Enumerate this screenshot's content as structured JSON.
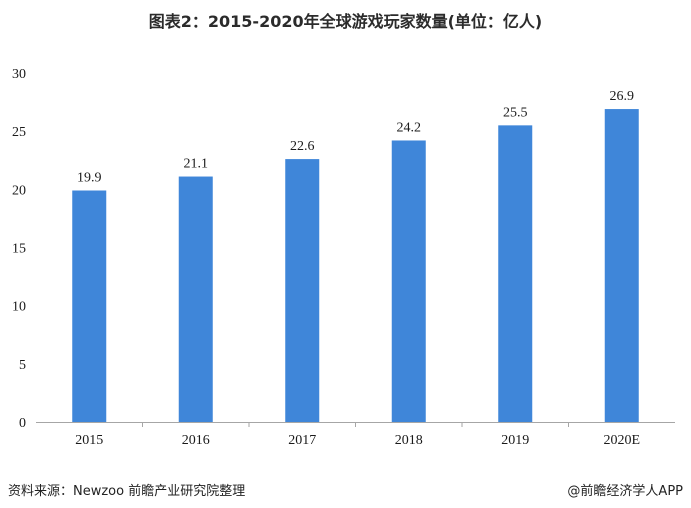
{
  "title": "图表2：2015-2020年全球游戏玩家数量(单位：亿人)",
  "footer": {
    "source": "资料来源：Newzoo 前瞻产业研究院整理",
    "credit": "@前瞻经济学人APP"
  },
  "colors": {
    "bar": "#3f86d9",
    "axis": "#a6a6a6"
  },
  "chart_data": {
    "type": "bar",
    "categories": [
      "2015",
      "2016",
      "2017",
      "2018",
      "2019",
      "2020E"
    ],
    "values": [
      19.9,
      21.1,
      22.6,
      24.2,
      25.5,
      26.9
    ],
    "data_labels": [
      "19.9",
      "21.1",
      "22.6",
      "24.2",
      "25.5",
      "26.9"
    ],
    "yticks": [
      "0",
      "5",
      "10",
      "15",
      "20",
      "25",
      "30"
    ],
    "ylim": [
      0,
      30
    ],
    "grid": false,
    "legend": "none"
  }
}
